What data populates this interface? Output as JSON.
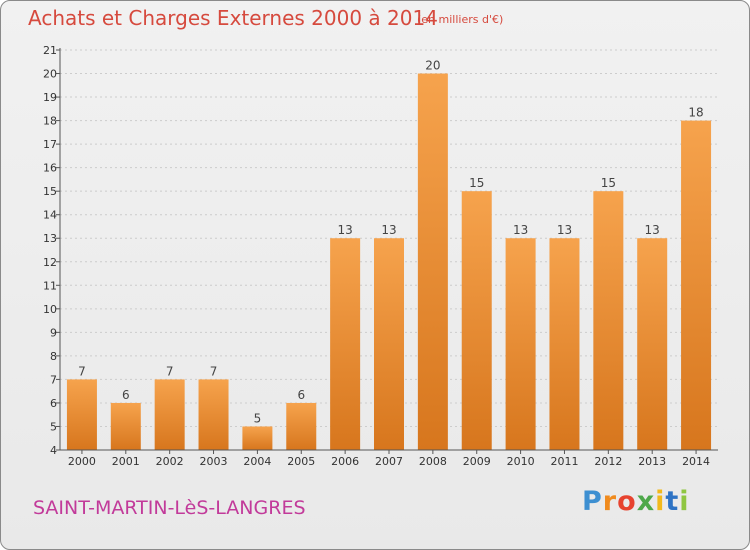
{
  "colors": {
    "title": "#d64a3e",
    "commune": "#c23a9a",
    "bar_light": "#f6a34d",
    "bar_dark": "#d7761d",
    "axis": "#555555",
    "grid": "#cccccc"
  },
  "page": {
    "title": "Achats et Charges Externes 2000 à 2014",
    "unit": "(en milliers d'€)",
    "commune": "SAINT-MARTIN-LèS-LANGRES",
    "logo_text": "Proxiti"
  },
  "chart_data": {
    "type": "bar",
    "title": "Achats et Charges Externes 2000 à 2014",
    "subtitle": "(en milliers d'€)",
    "xlabel": "",
    "ylabel": "",
    "categories": [
      "2000",
      "2001",
      "2002",
      "2003",
      "2004",
      "2005",
      "2006",
      "2007",
      "2008",
      "2009",
      "2010",
      "2011",
      "2012",
      "2013",
      "2014"
    ],
    "values": [
      7,
      6,
      7,
      7,
      5,
      6,
      13,
      13,
      20,
      15,
      13,
      13,
      15,
      13,
      18
    ],
    "data_labels": [
      "7",
      "6",
      "7",
      "7",
      "5",
      "6",
      "13",
      "13",
      "20",
      "15",
      "13",
      "13",
      "15",
      "13",
      "18"
    ],
    "ylim": [
      4,
      21
    ],
    "yticks": [
      4,
      5,
      6,
      7,
      8,
      9,
      10,
      11,
      12,
      13,
      14,
      15,
      16,
      17,
      18,
      19,
      20,
      21
    ],
    "ytick_labels": [
      "4",
      "5",
      "6",
      "7",
      "8",
      "9",
      "10",
      "11",
      "12",
      "13",
      "14",
      "15",
      "16",
      "17",
      "18",
      "19",
      "20",
      "21"
    ],
    "grid": true,
    "legend": false
  }
}
